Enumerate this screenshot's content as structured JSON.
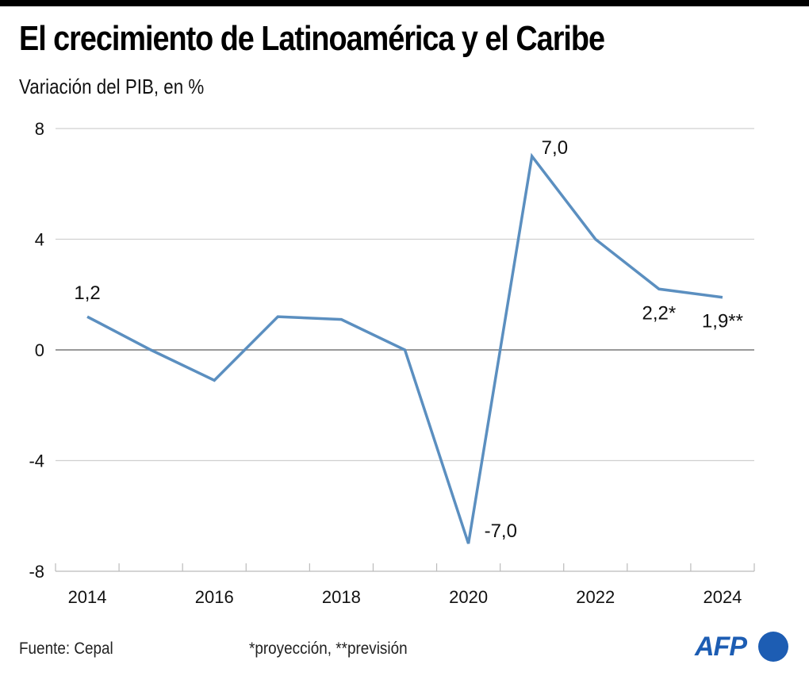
{
  "header": {
    "title": "El crecimiento de Latinoamérica y el Caribe",
    "subtitle": "Variación del PIB, en %"
  },
  "footer": {
    "source": "Fuente: Cepal",
    "note": "*proyección, **previsión",
    "logo_text": "AFP"
  },
  "colors": {
    "line": "#5b8fc0",
    "logo": "#1d5db3",
    "gridline": "#d0d0d0",
    "zeroline": "#999999"
  },
  "chart_data": {
    "type": "line",
    "title": "El crecimiento de Latinoamérica y el Caribe",
    "subtitle": "Variación del PIB, en %",
    "xlabel": "",
    "ylabel": "Variación del PIB, en %",
    "x": [
      2014,
      2015,
      2016,
      2017,
      2018,
      2019,
      2020,
      2021,
      2022,
      2023,
      2024
    ],
    "series": [
      {
        "name": "Variación del PIB",
        "values": [
          1.2,
          0.0,
          -1.1,
          1.2,
          1.1,
          0.0,
          -7.0,
          7.0,
          4.0,
          2.2,
          1.9
        ]
      }
    ],
    "ylim": [
      -8,
      8
    ],
    "yticks": [
      8,
      4,
      0,
      -4,
      -8
    ],
    "ytick_labels": [
      "8",
      "4",
      "0",
      "-4",
      "-8"
    ],
    "xtick_labels": [
      "2014",
      "2016",
      "2018",
      "2020",
      "2022",
      "2024"
    ],
    "xtick_label_years": [
      2014,
      2016,
      2018,
      2020,
      2022,
      2024
    ],
    "grid": true,
    "annotations": [
      {
        "year": 2014,
        "text": "1,2",
        "position": "above"
      },
      {
        "year": 2020,
        "text": "-7,0",
        "position": "right"
      },
      {
        "year": 2021,
        "text": "7,0",
        "position": "above-right"
      },
      {
        "year": 2023,
        "text": "2,2*",
        "position": "below"
      },
      {
        "year": 2024,
        "text": "1,9**",
        "position": "below"
      }
    ],
    "legend": "none",
    "source": "Fuente: Cepal",
    "footnote": "*proyección, **previsión"
  }
}
